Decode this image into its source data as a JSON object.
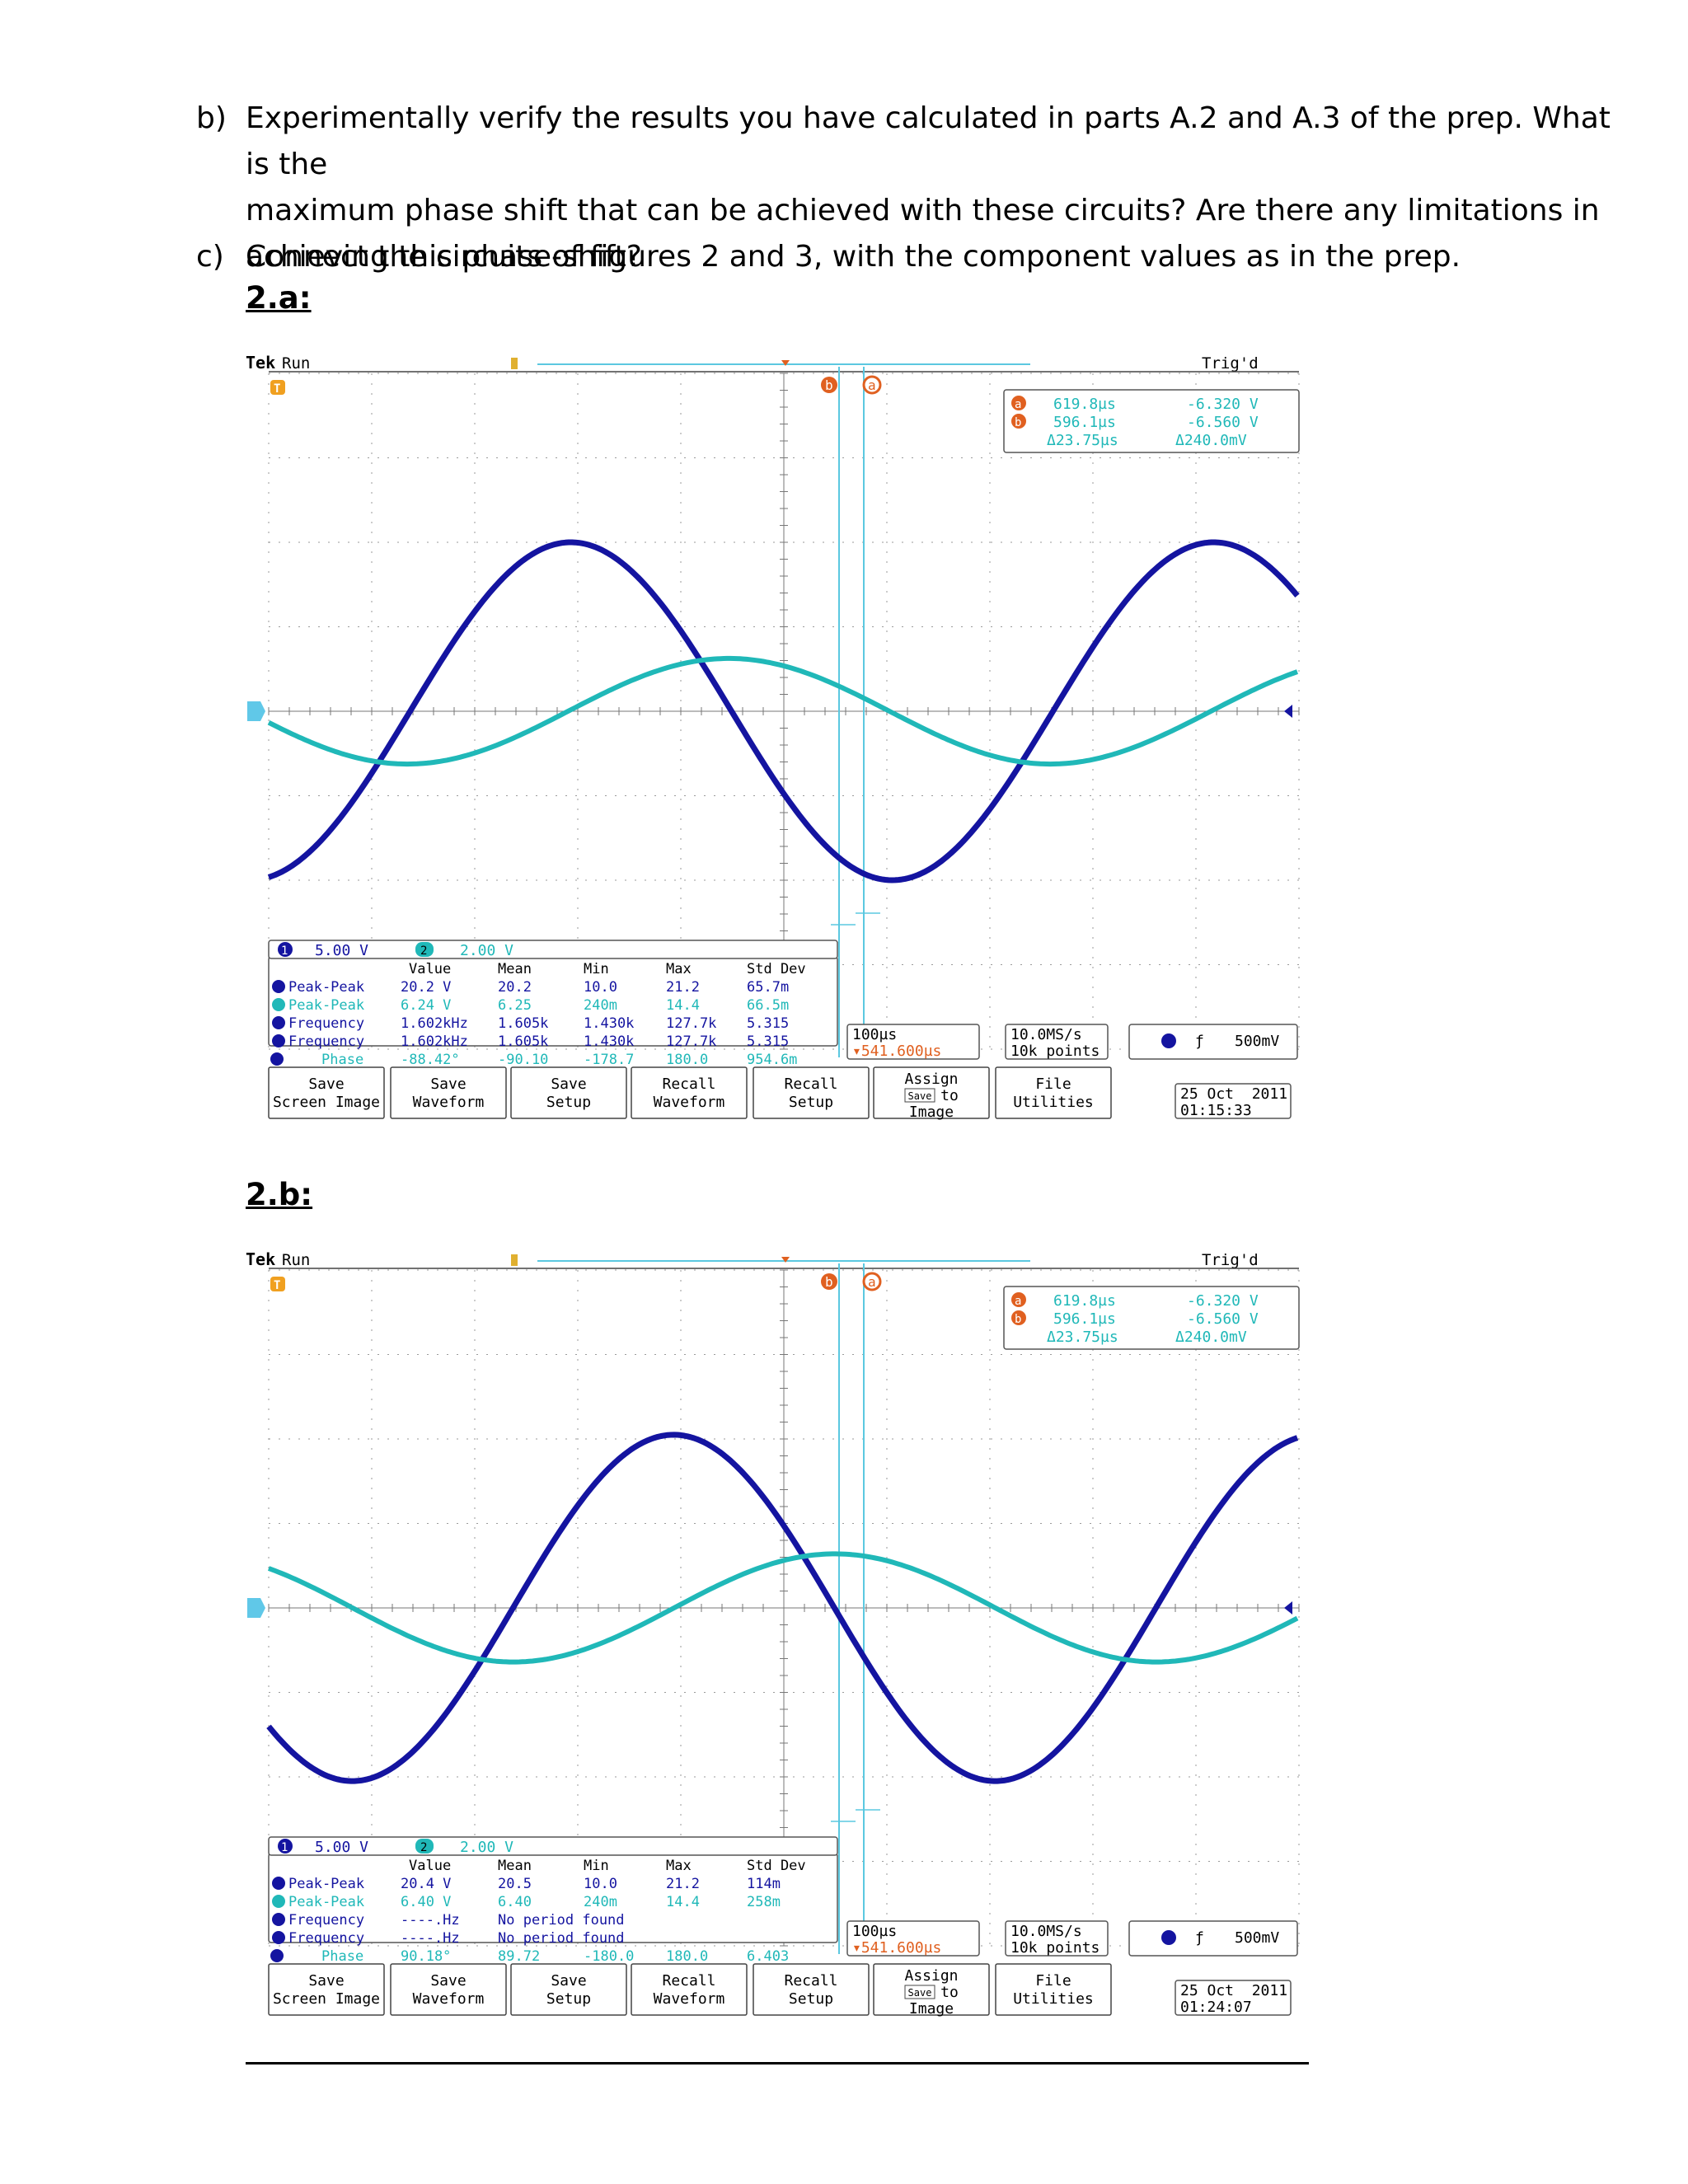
{
  "questions": [
    {
      "label": "b)",
      "lines": [
        "Experimentally verify the results you have calculated in parts A.2 and A.3 of the prep. What is the",
        "maximum phase shift that can be achieved with these circuits? Are there any limitations in",
        "achieving this phase-shift?"
      ]
    },
    {
      "label": "c)",
      "lines": [
        "Connect the circuits of figures 2 and 3, with the component values as in the prep."
      ]
    }
  ],
  "colors": {
    "ch1": "#1414a0",
    "ch2": "#20b8b8",
    "cursor": "#5bc8e0",
    "orange": "#e06020",
    "grid": "#9a9a9a"
  },
  "scopes": [
    {
      "heading": "2.a:",
      "brand": "Tek",
      "state": "Run",
      "trig_status": "Trig'd",
      "cursor_a_label": "a",
      "cursor_b_label": "b",
      "cursor_readout": {
        "a_time": "619.8µs",
        "b_time": "596.1µs",
        "delta_time": "Δ23.75µs",
        "a_volt": "-6.320 V",
        "b_volt": "-6.560 V",
        "delta_volt": "Δ240.0mV"
      },
      "ch1_scale": "5.00 V",
      "ch2_scale": "2.00 V",
      "meas_headers": [
        "Value",
        "Mean",
        "Min",
        "Max",
        "Std Dev"
      ],
      "meas_rows": [
        {
          "ch": "1",
          "name": "Peak-Peak",
          "value": "20.2 V",
          "mean": "20.2",
          "min": "10.0",
          "max": "21.2",
          "std": "65.7m"
        },
        {
          "ch": "2",
          "name": "Peak-Peak",
          "value": "6.24 V",
          "mean": "6.25",
          "min": "240m",
          "max": "14.4",
          "std": "66.5m"
        },
        {
          "ch": "1",
          "name": "Frequency",
          "value": "1.602kHz",
          "mean": "1.605k",
          "min": "1.430k",
          "max": "127.7k",
          "std": "5.315"
        },
        {
          "ch": "1",
          "name": "Frequency",
          "value": "1.602kHz",
          "mean": "1.605k",
          "min": "1.430k",
          "max": "127.7k",
          "std": "5.315"
        },
        {
          "ch": "2→1",
          "name": "Phase",
          "value": "-88.42°",
          "mean": "-90.10",
          "min": "-178.7",
          "max": "180.0",
          "std": "954.6m"
        }
      ],
      "timebase": "100µs",
      "trig_pos": "▾541.600µs",
      "sample_rate": "10.0MS/s",
      "record": "10k points",
      "trig_level": "500mV",
      "buttons": [
        "Save",
        "Screen Image",
        "Save",
        "Waveform",
        "Save",
        "Setup",
        "Recall",
        "Waveform",
        "Recall",
        "Setup",
        "Assign",
        "Save",
        "to",
        "Image",
        "File",
        "Utilities"
      ],
      "date": "25 Oct  2011",
      "time": "01:15:33",
      "chart_data": {
        "type": "line",
        "series": [
          {
            "name": "1",
            "amplitude_div": 4,
            "phase_deg": 0
          },
          {
            "name": "2",
            "amplitude_div": 1.25,
            "phase_deg": -88.42
          }
        ],
        "frequency": "1.602kHz"
      }
    },
    {
      "heading": "2.b:",
      "brand": "Tek",
      "state": "Run",
      "trig_status": "Trig'd",
      "cursor_a_label": "a",
      "cursor_b_label": "b",
      "cursor_readout": {
        "a_time": "619.8µs",
        "b_time": "596.1µs",
        "delta_time": "Δ23.75µs",
        "a_volt": "-6.320 V",
        "b_volt": "-6.560 V",
        "delta_volt": "Δ240.0mV"
      },
      "ch1_scale": "5.00 V",
      "ch2_scale": "2.00 V",
      "meas_headers": [
        "Value",
        "Mean",
        "Min",
        "Max",
        "Std Dev"
      ],
      "meas_rows": [
        {
          "ch": "1",
          "name": "Peak-Peak",
          "value": "20.4 V",
          "mean": "20.5",
          "min": "10.0",
          "max": "21.2",
          "std": "114m"
        },
        {
          "ch": "2",
          "name": "Peak-Peak",
          "value": "6.40 V",
          "mean": "6.40",
          "min": "240m",
          "max": "14.4",
          "std": "258m"
        },
        {
          "ch": "1",
          "name": "Frequency",
          "value": "----.Hz",
          "mean": "No period found",
          "min": "",
          "max": "",
          "std": ""
        },
        {
          "ch": "1",
          "name": "Frequency",
          "value": "----.Hz",
          "mean": "No period found",
          "min": "",
          "max": "",
          "std": ""
        },
        {
          "ch": "2→1",
          "name": "Phase",
          "value": "90.18°",
          "mean": "89.72",
          "min": "-180.0",
          "max": "180.0",
          "std": "6.403"
        }
      ],
      "timebase": "100µs",
      "trig_pos": "▾541.600µs",
      "sample_rate": "10.0MS/s",
      "record": "10k points",
      "trig_level": "500mV",
      "buttons": [
        "Save",
        "Screen Image",
        "Save",
        "Waveform",
        "Save",
        "Setup",
        "Recall",
        "Waveform",
        "Recall",
        "Setup",
        "Assign",
        "Save",
        "to",
        "Image",
        "File",
        "Utilities"
      ],
      "date": "25 Oct  2011",
      "time": "01:24:07",
      "chart_data": {
        "type": "line",
        "series": [
          {
            "name": "1",
            "amplitude_div": 4.1,
            "phase_deg": 0
          },
          {
            "name": "2",
            "amplitude_div": 1.28,
            "phase_deg": 90.18
          }
        ],
        "frequency": ""
      }
    }
  ]
}
